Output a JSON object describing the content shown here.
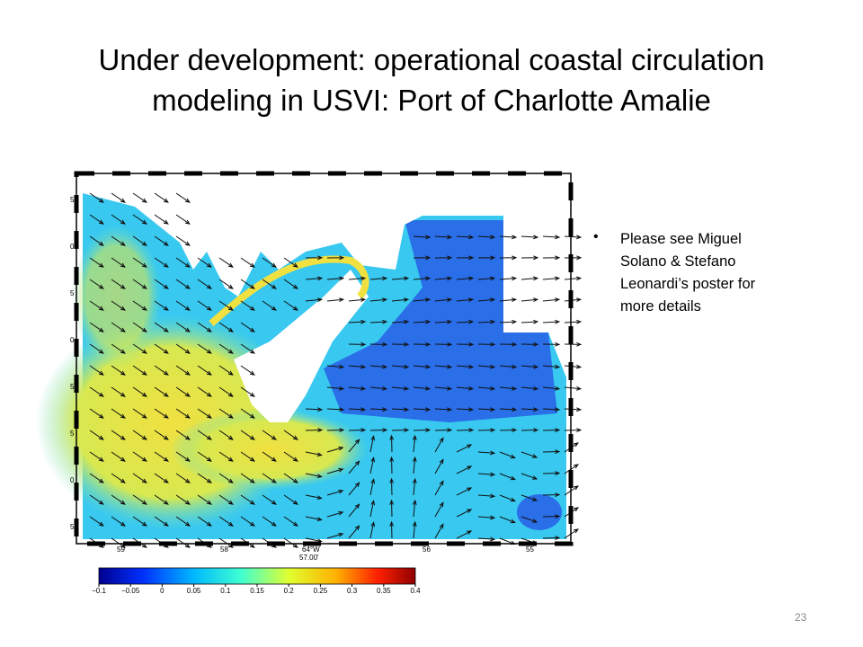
{
  "title": {
    "line1": "Under development: operational coastal circulation",
    "line2": "modeling in USVI: Port of Charlotte Amalie"
  },
  "figure": {
    "x_labels": [
      "59",
      "58",
      "56",
      "55"
    ],
    "center_label": "64°W",
    "center_sublabel": "57.00'",
    "y_labels": [
      "5",
      "0",
      "5",
      "0",
      "5",
      "5",
      "0",
      "5"
    ],
    "colorbar_ticks": [
      "−0.1",
      "−0.05",
      "0",
      "0.05",
      "0.1",
      "0.15",
      "0.2",
      "0.25",
      "0.3",
      "0.35",
      "0.4"
    ]
  },
  "bullets": [
    [
      "Please see Miguel",
      "Solano & Stefano",
      "Leonardi’s  poster for",
      "more details"
    ]
  ],
  "slide_number": "23"
}
